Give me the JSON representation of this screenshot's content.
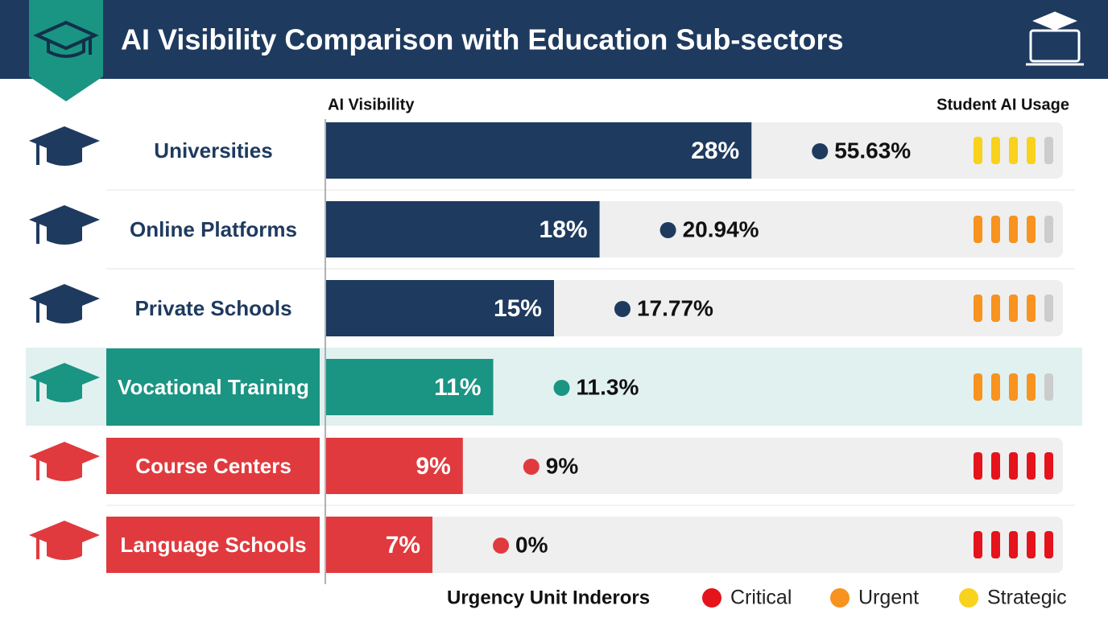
{
  "chart_data": {
    "type": "bar",
    "title": "AI Visibility Comparison with Education Sub-sectors",
    "value_header": "AI Visibility",
    "usage_header": "Student AI Usage",
    "categories": [
      "Universities",
      "Online Platforms",
      "Private Schools",
      "Vocational Training",
      "Course Centers",
      "Language Schools"
    ],
    "colors": [
      "#1e3a5f",
      "#1e3a5f",
      "#1e3a5f",
      "#1a9483",
      "#e03a3e",
      "#e03a3e"
    ],
    "label_boxes": [
      false,
      false,
      false,
      true,
      true,
      true
    ],
    "highlight": 3,
    "values": [
      28,
      18,
      15,
      11,
      9,
      7
    ],
    "value_labels": [
      "28%",
      "18%",
      "15%",
      "11%",
      "9%",
      "7%"
    ],
    "xlim": [
      0,
      48.5
    ],
    "usage": [
      55.63,
      20.94,
      17.77,
      11.3,
      9,
      0
    ],
    "usage_labels": [
      "55.63%",
      "20.94%",
      "17.77%",
      "11.3%",
      "9%",
      "0%"
    ],
    "urgency": [
      "Strategic",
      "Urgent",
      "Urgent",
      "Urgent",
      "Critical",
      "Critical"
    ],
    "urgency_level": [
      4,
      4,
      4,
      4,
      5,
      5
    ],
    "urgency_max": 5,
    "legend": {
      "title": "Urgency Unit Inderors",
      "items": [
        {
          "name": "Critical",
          "color": "#e5131b"
        },
        {
          "name": "Urgent",
          "color": "#f7931e"
        },
        {
          "name": "Strategic",
          "color": "#f8d21c"
        }
      ]
    }
  }
}
